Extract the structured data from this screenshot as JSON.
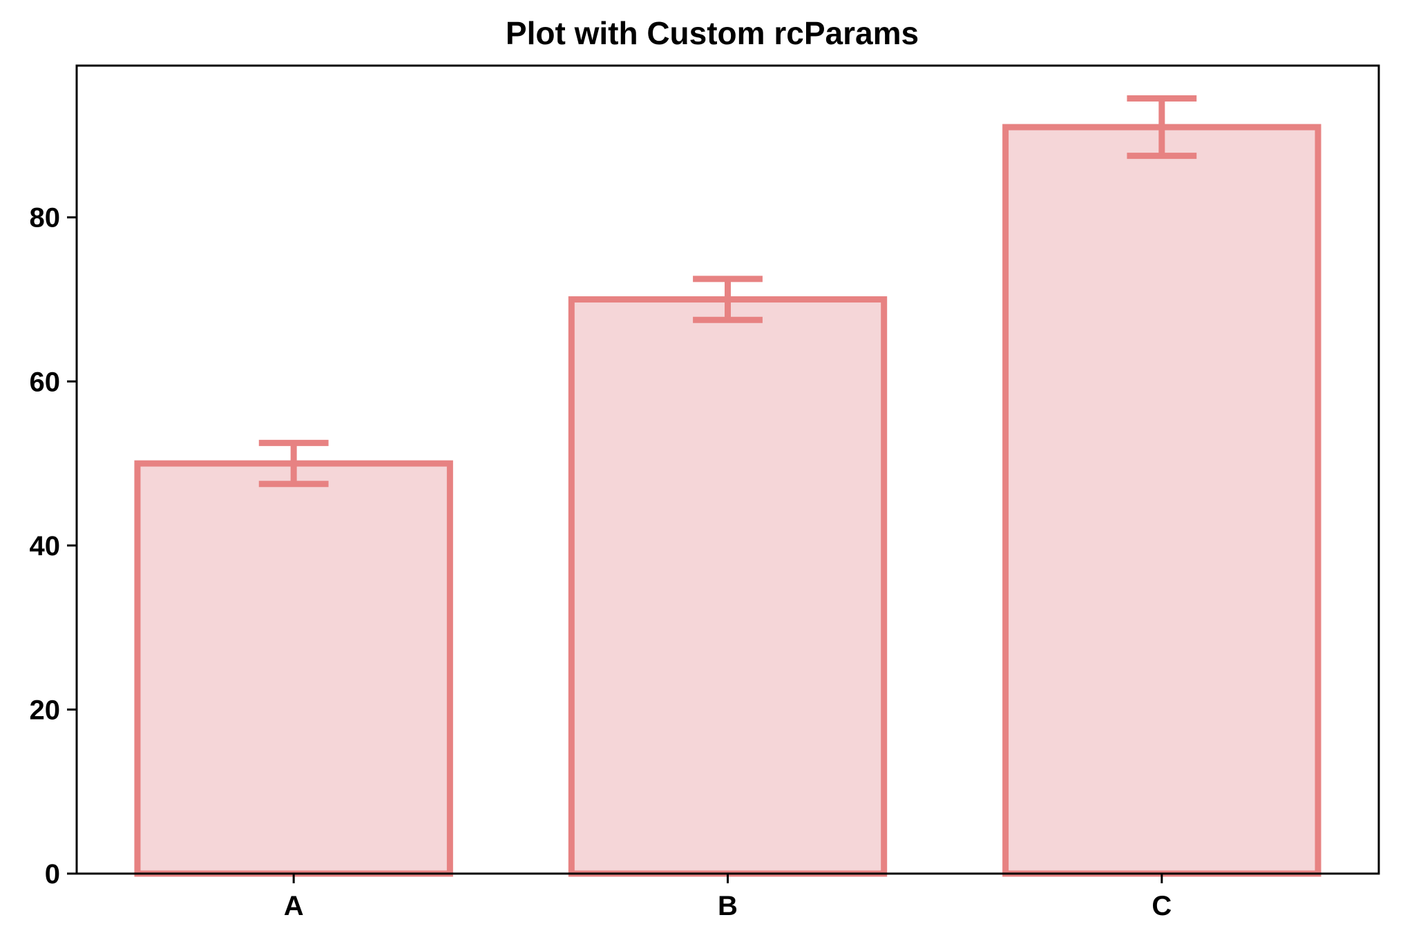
{
  "chart_data": {
    "type": "bar",
    "title": "Plot with Custom rcParams",
    "xlabel": "",
    "ylabel": "",
    "categories": [
      "A",
      "B",
      "C"
    ],
    "values": [
      50,
      70,
      91
    ],
    "errors": [
      2.5,
      2.5,
      3.5
    ],
    "ylim": [
      0,
      98.5
    ],
    "yticks": [
      0,
      20,
      40,
      60,
      80
    ],
    "yticklabels": [
      "0",
      "20",
      "40",
      "60",
      "80"
    ],
    "grid": false,
    "colors": {
      "bar_fill": "#f5d6d8",
      "bar_edge": "#e78282",
      "error": "#e78282",
      "axis": "#000000"
    }
  }
}
